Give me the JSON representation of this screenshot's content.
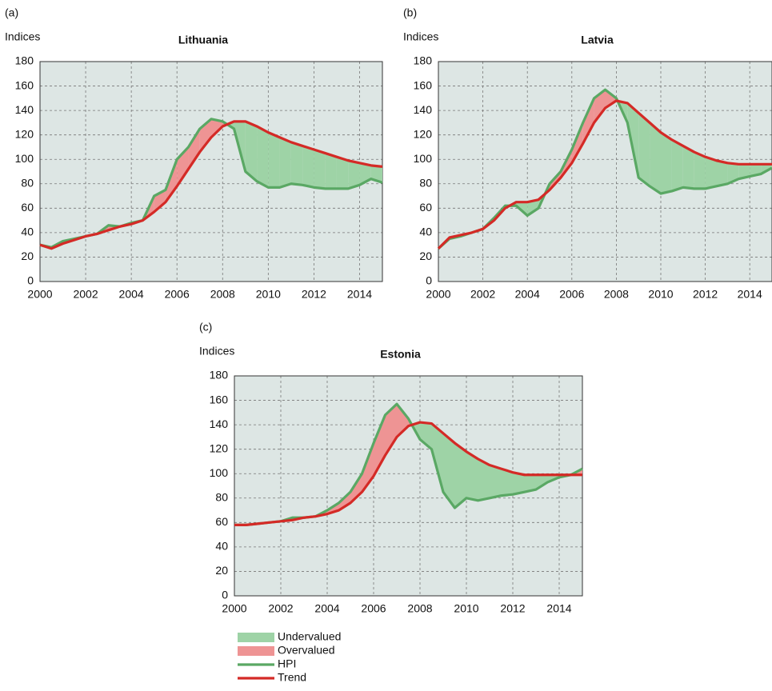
{
  "chart_data": [
    {
      "type": "line",
      "panel": "(a)",
      "ylabel": "Indices",
      "title": "Lithuania",
      "x": [
        2000,
        2000.5,
        2001,
        2001.5,
        2002,
        2002.5,
        2003,
        2003.5,
        2004,
        2004.5,
        2005,
        2005.5,
        2006,
        2006.5,
        2007,
        2007.5,
        2008,
        2008.5,
        2009,
        2009.5,
        2010,
        2010.5,
        2011,
        2011.5,
        2012,
        2012.5,
        2013,
        2013.5,
        2014,
        2014.5,
        2015
      ],
      "series": [
        {
          "name": "HPI",
          "color": "#5aa864",
          "values": [
            30,
            28,
            33,
            35,
            37,
            39,
            46,
            45,
            48,
            50,
            70,
            75,
            100,
            110,
            125,
            133,
            131,
            125,
            90,
            82,
            77,
            77,
            80,
            79,
            77,
            76,
            76,
            76,
            79,
            84,
            81
          ]
        },
        {
          "name": "Trend",
          "color": "#d42a26",
          "values": [
            30,
            27,
            31,
            34,
            37,
            39,
            42,
            45,
            47,
            50,
            57,
            65,
            78,
            92,
            106,
            118,
            127,
            131,
            131,
            127,
            122,
            118,
            114,
            111,
            108,
            105,
            102,
            99,
            97,
            95,
            94
          ]
        }
      ],
      "xlim": [
        2000,
        2015
      ],
      "xticks": [
        2000,
        2002,
        2004,
        2006,
        2008,
        2010,
        2012,
        2014
      ],
      "ylim": [
        0,
        180
      ],
      "yticks": [
        0,
        20,
        40,
        60,
        80,
        100,
        120,
        140,
        160,
        180
      ],
      "grid": true
    },
    {
      "type": "line",
      "panel": "(b)",
      "ylabel": "Indices",
      "title": "Latvia",
      "x": [
        2000,
        2000.5,
        2001,
        2001.5,
        2002,
        2002.5,
        2003,
        2003.5,
        2004,
        2004.5,
        2005,
        2005.5,
        2006,
        2006.5,
        2007,
        2007.5,
        2008,
        2008.5,
        2009,
        2009.5,
        2010,
        2010.5,
        2011,
        2011.5,
        2012,
        2012.5,
        2013,
        2013.5,
        2014,
        2014.5,
        2015
      ],
      "series": [
        {
          "name": "HPI",
          "color": "#5aa864",
          "values": [
            27,
            35,
            37,
            40,
            43,
            52,
            62,
            62,
            54,
            60,
            80,
            90,
            108,
            130,
            150,
            157,
            150,
            130,
            85,
            78,
            72,
            74,
            77,
            76,
            76,
            78,
            80,
            84,
            86,
            88,
            93
          ]
        },
        {
          "name": "Trend",
          "color": "#d42a26",
          "values": [
            27,
            36,
            38,
            40,
            43,
            50,
            60,
            65,
            65,
            67,
            75,
            85,
            97,
            113,
            130,
            142,
            148,
            146,
            138,
            130,
            122,
            116,
            111,
            106,
            102,
            99,
            97,
            96,
            96,
            96,
            96
          ]
        }
      ],
      "xlim": [
        2000,
        2015
      ],
      "xticks": [
        2000,
        2002,
        2004,
        2006,
        2008,
        2010,
        2012,
        2014
      ],
      "ylim": [
        0,
        180
      ],
      "yticks": [
        0,
        20,
        40,
        60,
        80,
        100,
        120,
        140,
        160,
        180
      ],
      "grid": true
    },
    {
      "type": "line",
      "panel": "(c)",
      "ylabel": "Indices",
      "title": "Estonia",
      "x": [
        2000,
        2000.5,
        2001,
        2001.5,
        2002,
        2002.5,
        2003,
        2003.5,
        2004,
        2004.5,
        2005,
        2005.5,
        2006,
        2006.5,
        2007,
        2007.5,
        2008,
        2008.5,
        2009,
        2009.5,
        2010,
        2010.5,
        2011,
        2011.5,
        2012,
        2012.5,
        2013,
        2013.5,
        2014,
        2014.5,
        2015
      ],
      "series": [
        {
          "name": "HPI",
          "color": "#5aa864",
          "values": [
            58,
            58,
            59,
            60,
            61,
            64,
            64,
            65,
            70,
            76,
            85,
            100,
            125,
            148,
            157,
            145,
            128,
            120,
            85,
            72,
            80,
            78,
            80,
            82,
            83,
            85,
            87,
            93,
            97,
            99,
            104
          ]
        },
        {
          "name": "Trend",
          "color": "#d42a26",
          "values": [
            58,
            58,
            59,
            60,
            61,
            62,
            64,
            65,
            67,
            70,
            76,
            85,
            98,
            115,
            130,
            139,
            142,
            141,
            133,
            125,
            118,
            112,
            107,
            104,
            101,
            99,
            99,
            99,
            99,
            99,
            99
          ]
        }
      ],
      "xlim": [
        2000,
        2015
      ],
      "xticks": [
        2000,
        2002,
        2004,
        2006,
        2008,
        2010,
        2012,
        2014
      ],
      "ylim": [
        0,
        180
      ],
      "yticks": [
        0,
        20,
        40,
        60,
        80,
        100,
        120,
        140,
        160,
        180
      ],
      "grid": true
    }
  ],
  "legend": [
    {
      "name": "Undervalued",
      "color": "#9ed3a6",
      "mark": "area"
    },
    {
      "name": "Overvalued",
      "color": "#ee9494",
      "mark": "area"
    },
    {
      "name": "HPI",
      "color": "#5aa864",
      "mark": "line"
    },
    {
      "name": "Trend",
      "color": "#d42a26",
      "mark": "line"
    }
  ]
}
